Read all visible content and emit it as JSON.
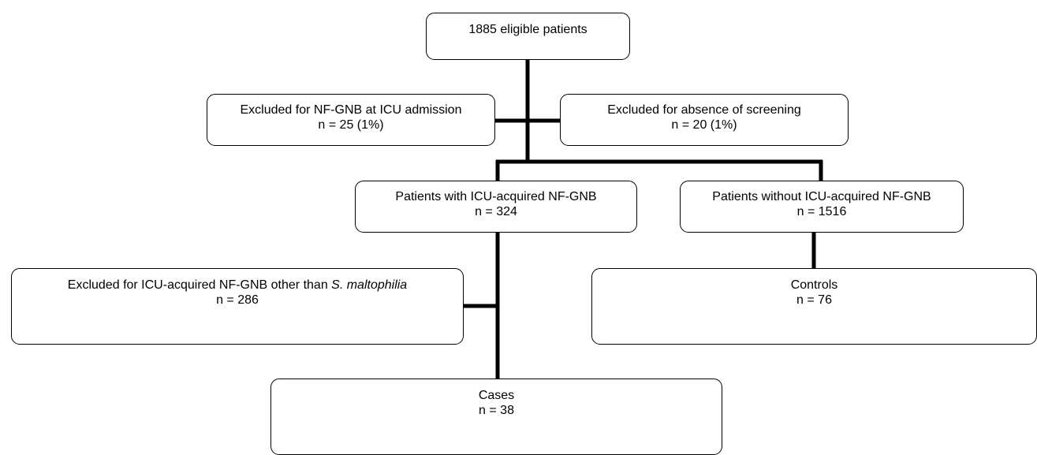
{
  "flowchart": {
    "eligible": {
      "line1": "1885 eligible patients"
    },
    "excluded_admission": {
      "line1": "Excluded for NF-GNB at ICU admission",
      "line2": "n = 25 (1%)"
    },
    "excluded_screening": {
      "line1": "Excluded for absence of screening",
      "line2": "n = 20 (1%)"
    },
    "with_nfgnb": {
      "line1": "Patients with ICU-acquired NF-GNB",
      "line2": "n = 324"
    },
    "without_nfgnb": {
      "line1": "Patients without ICU-acquired NF-GNB",
      "line2": "n = 1516"
    },
    "excluded_other": {
      "line1_prefix": "Excluded for ICU-acquired NF-GNB other than ",
      "line1_species": "S. maltophilia",
      "line2": "n = 286"
    },
    "controls": {
      "line1": "Controls",
      "line2": "n = 76"
    },
    "cases": {
      "line1": "Cases",
      "line2": "n = 38"
    }
  },
  "colors": {
    "lines": "#000000",
    "box_border": "#000000",
    "background": "#ffffff"
  }
}
